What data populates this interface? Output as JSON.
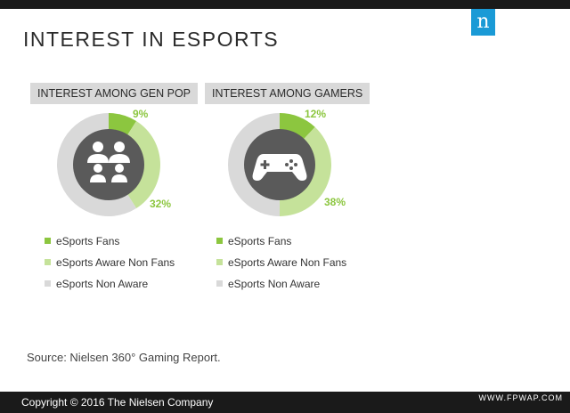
{
  "title": "INTEREST IN ESPORTS",
  "logo": "n",
  "source": "Source: Nielsen 360° Gaming Report.",
  "copyright": "Copyright © 2016 The Nielsen Company",
  "watermark": "WWW.FPWAP.COM",
  "colors": {
    "fans": "#8cc63f",
    "aware_non_fans": "#c5e29a",
    "non_aware": "#d9d9d9",
    "center": "#5a5a5a",
    "logo_bg": "#1a9ad6"
  },
  "icons": [
    "people-icon",
    "gamepad-icon"
  ],
  "chart_data": [
    {
      "type": "pie",
      "title": "INTEREST AMONG GEN POP",
      "categories": [
        "eSports Fans",
        "eSports Aware Non Fans",
        "eSports Non Aware"
      ],
      "values": [
        9,
        32,
        59
      ],
      "labels": [
        "9%",
        "32%"
      ]
    },
    {
      "type": "pie",
      "title": "INTEREST AMONG GAMERS",
      "categories": [
        "eSports Fans",
        "eSports Aware Non Fans",
        "eSports Non Aware"
      ],
      "values": [
        12,
        38,
        50
      ],
      "labels": [
        "12%",
        "38%"
      ]
    }
  ]
}
